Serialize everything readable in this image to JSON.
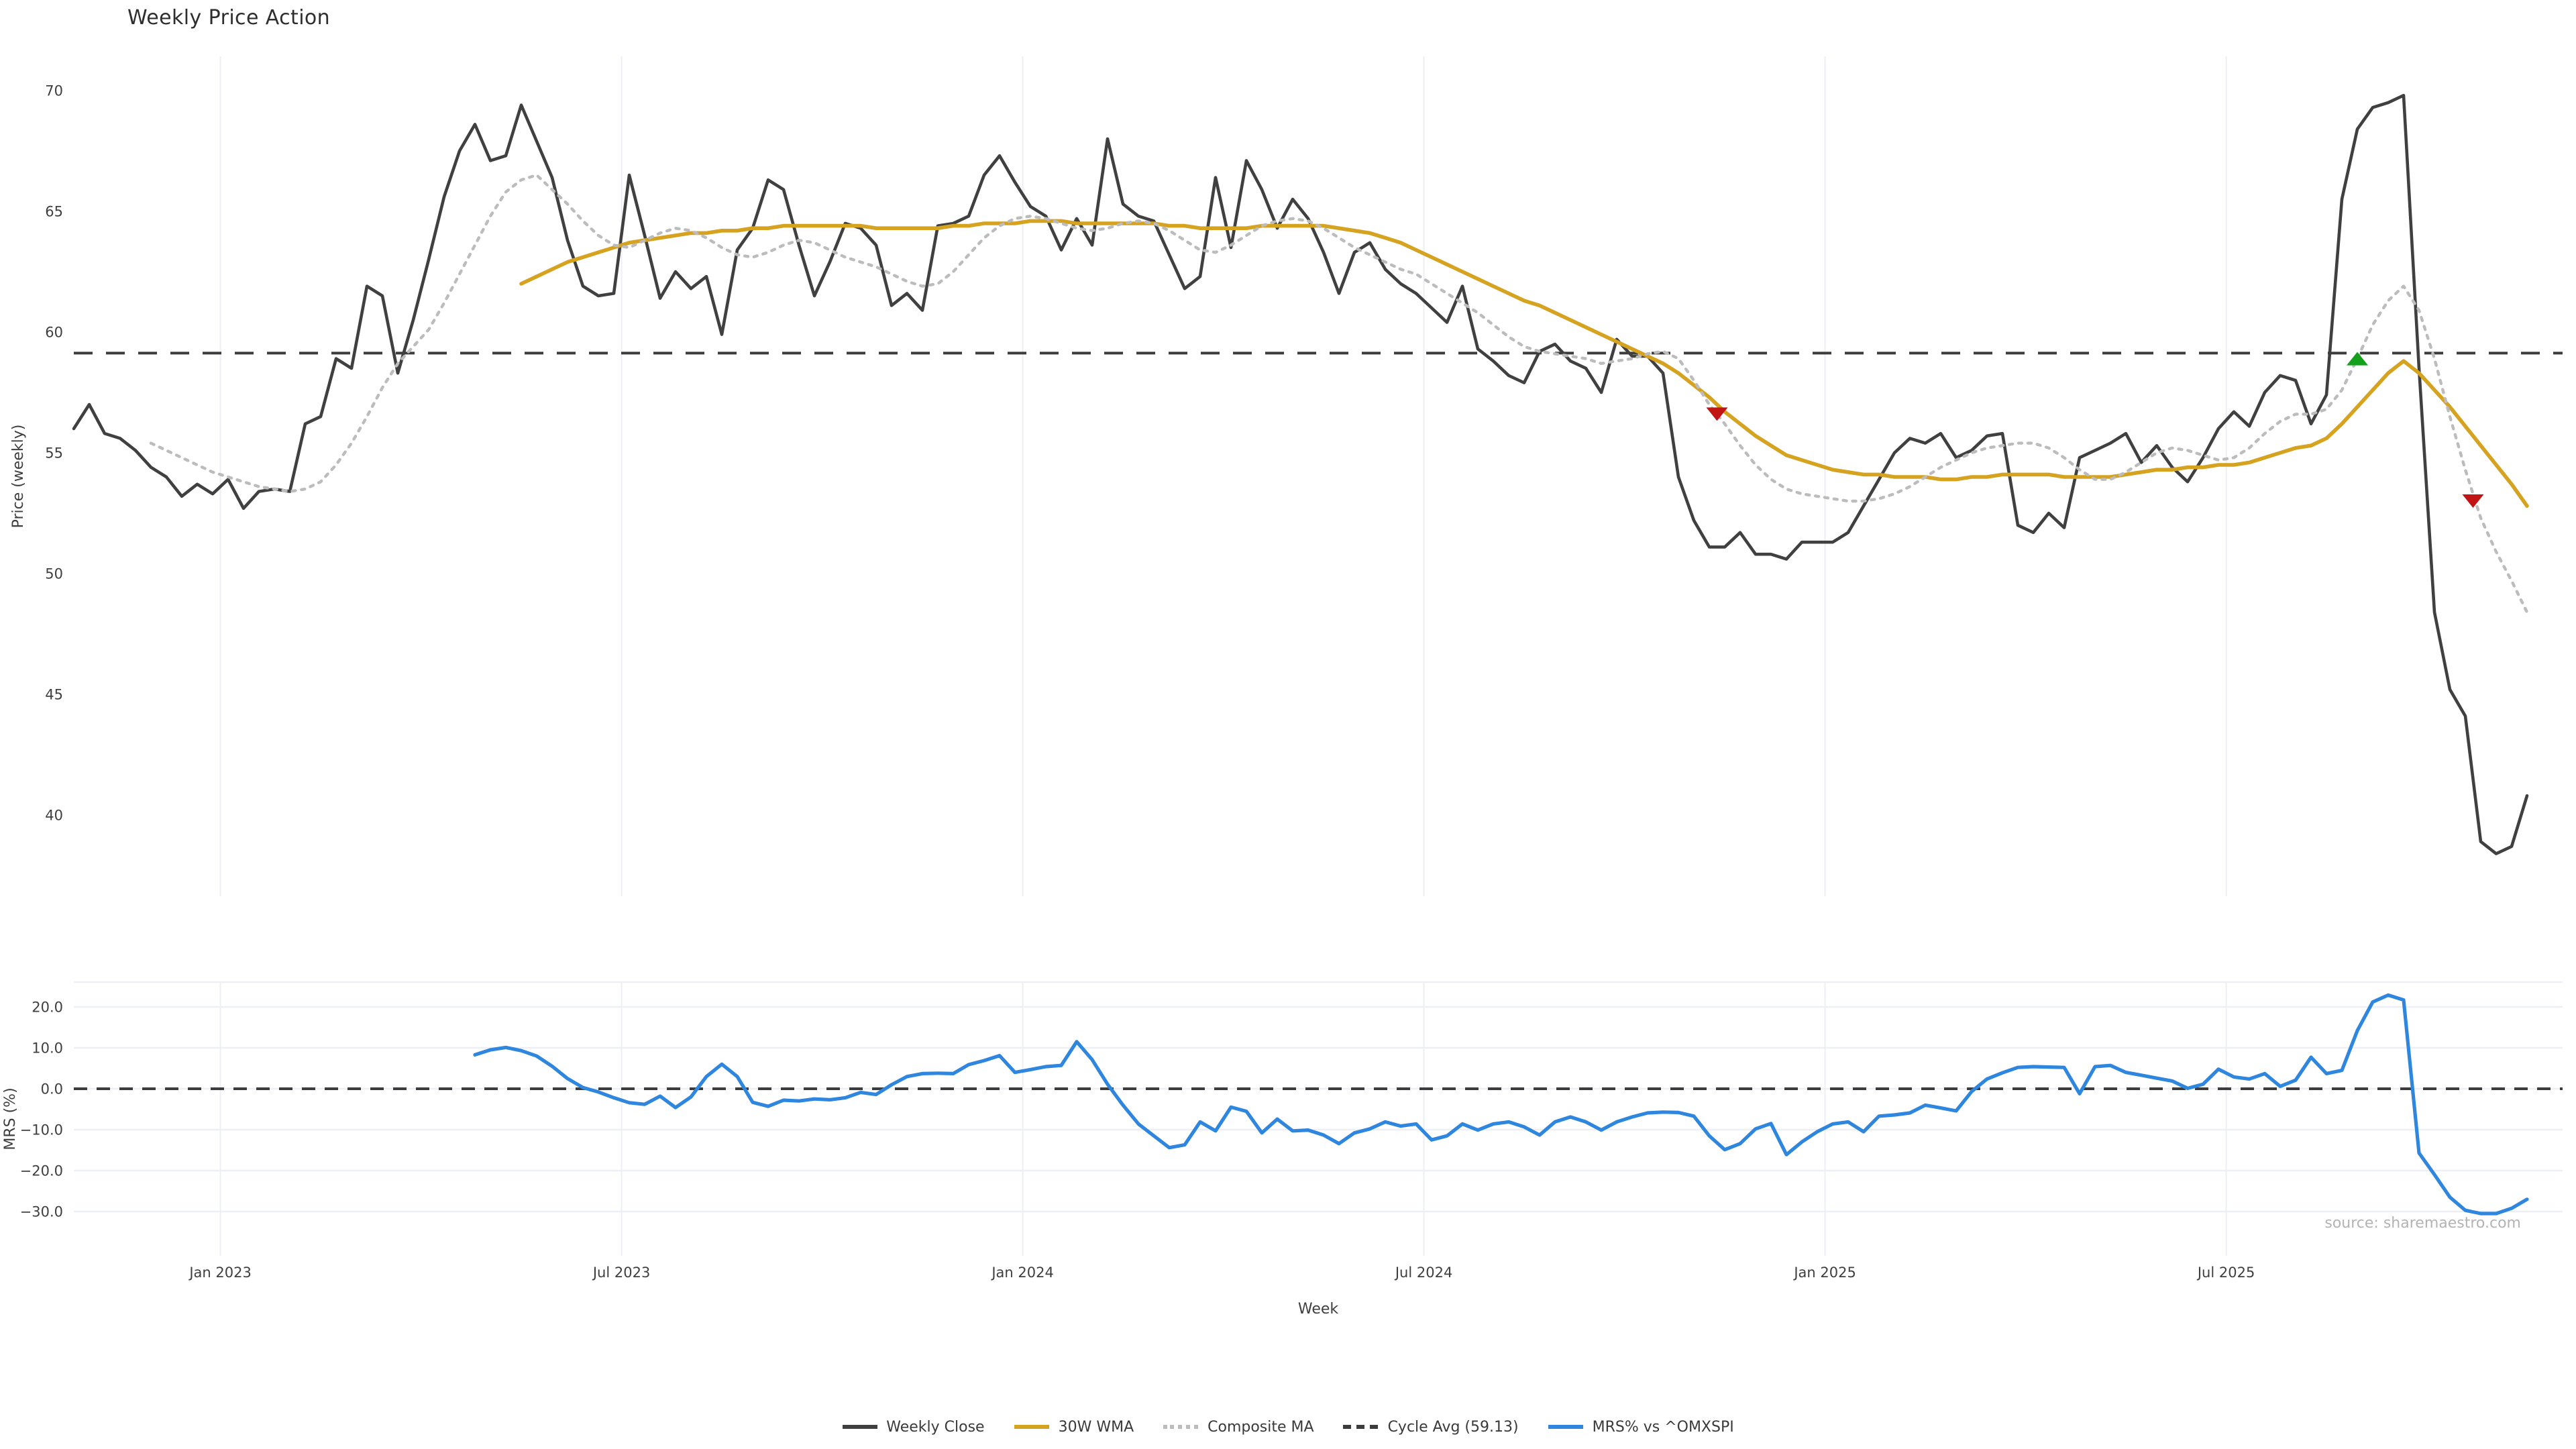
{
  "page": {
    "title": "Weekly Price Action",
    "source_note": "source: sharemaestro.com"
  },
  "chart_data": {
    "type": "line",
    "title": "Weekly Price Action",
    "layout": {
      "grid": "vertical-month-gridlines",
      "legend_position": "bottom-center",
      "panels": [
        "price",
        "mrs"
      ]
    },
    "x_axis": {
      "label": "Week",
      "tick_labels": [
        "Jan 2023",
        "Jul 2023",
        "Jan 2024",
        "Jul 2024",
        "Jan 2025",
        "Jul 2025"
      ],
      "tick_weeks": [
        9.5,
        35.5,
        61.5,
        87.5,
        113.5,
        139.5
      ],
      "weeks_total": 160
    },
    "price_panel": {
      "ylabel": "Price (weekly)",
      "ticks": [
        70,
        65,
        60,
        55,
        50,
        45,
        40
      ],
      "ylim": [
        36.5,
        71.4
      ],
      "cycle_avg": 59.13
    },
    "mrs_panel": {
      "ylabel": "MRS (%)",
      "ticks": [
        20.0,
        10.0,
        0.0,
        -10.0,
        -20.0,
        -30.0
      ],
      "ylim": [
        -33,
        26
      ],
      "zero_line": 0.0
    },
    "series": [
      {
        "name": "Weekly Close",
        "panel": "price",
        "color": "#404040",
        "style": "solid",
        "width": 2.3,
        "values": [
          56.0,
          57.0,
          55.8,
          55.6,
          55.1,
          54.4,
          54.0,
          53.2,
          53.7,
          53.3,
          53.9,
          52.7,
          53.4,
          53.5,
          53.4,
          56.2,
          56.5,
          58.9,
          58.5,
          61.9,
          61.5,
          58.3,
          60.5,
          63.0,
          65.6,
          67.5,
          68.6,
          67.1,
          67.3,
          69.4,
          67.9,
          66.4,
          63.8,
          61.9,
          61.5,
          61.6,
          66.5,
          64.0,
          61.4,
          62.5,
          61.8,
          62.3,
          59.9,
          63.4,
          64.3,
          66.3,
          65.9,
          63.6,
          61.5,
          62.9,
          64.5,
          64.3,
          63.6,
          61.1,
          61.6,
          60.9,
          64.4,
          64.5,
          64.8,
          66.5,
          67.3,
          66.2,
          65.2,
          64.8,
          63.4,
          64.7,
          63.6,
          68.0,
          65.3,
          64.8,
          64.6,
          63.2,
          61.8,
          62.3,
          66.4,
          63.5,
          67.1,
          65.9,
          64.3,
          65.5,
          64.7,
          63.3,
          61.6,
          63.3,
          63.7,
          62.6,
          62.0,
          61.6,
          61.0,
          60.4,
          61.9,
          59.3,
          58.8,
          58.2,
          57.9,
          59.2,
          59.5,
          58.8,
          58.5,
          57.5,
          59.7,
          59.0,
          59.0,
          58.3,
          54.0,
          52.2,
          51.1,
          51.1,
          51.7,
          50.8,
          50.8,
          50.6,
          51.3,
          51.3,
          51.3,
          51.7,
          52.8,
          53.9,
          55.0,
          55.6,
          55.4,
          55.8,
          54.8,
          55.1,
          55.7,
          55.8,
          52.0,
          51.7,
          52.5,
          51.9,
          54.8,
          55.1,
          55.4,
          55.8,
          54.6,
          55.3,
          54.4,
          53.8,
          54.8,
          56.0,
          56.7,
          56.1,
          57.5,
          58.2,
          58.0,
          56.2,
          57.4,
          65.5,
          68.4,
          69.3,
          69.5,
          69.8,
          58.5,
          48.4,
          45.2,
          44.1,
          38.9,
          38.4,
          38.7,
          40.8
        ]
      },
      {
        "name": "30W WMA",
        "panel": "price",
        "color": "#d6a320",
        "style": "solid",
        "width": 2.8,
        "values": [
          null,
          null,
          null,
          null,
          null,
          null,
          null,
          null,
          null,
          null,
          null,
          null,
          null,
          null,
          null,
          null,
          null,
          null,
          null,
          null,
          null,
          null,
          null,
          null,
          null,
          null,
          null,
          null,
          null,
          62.0,
          62.3,
          62.6,
          62.9,
          63.1,
          63.3,
          63.5,
          63.7,
          63.8,
          63.9,
          64.0,
          64.1,
          64.1,
          64.2,
          64.2,
          64.3,
          64.3,
          64.4,
          64.4,
          64.4,
          64.4,
          64.4,
          64.4,
          64.3,
          64.3,
          64.3,
          64.3,
          64.3,
          64.4,
          64.4,
          64.5,
          64.5,
          64.5,
          64.6,
          64.6,
          64.6,
          64.5,
          64.5,
          64.5,
          64.5,
          64.5,
          64.5,
          64.4,
          64.4,
          64.3,
          64.3,
          64.3,
          64.3,
          64.4,
          64.4,
          64.4,
          64.4,
          64.4,
          64.3,
          64.2,
          64.1,
          63.9,
          63.7,
          63.4,
          63.1,
          62.8,
          62.5,
          62.2,
          61.9,
          61.6,
          61.3,
          61.1,
          60.8,
          60.5,
          60.2,
          59.9,
          59.6,
          59.3,
          59.0,
          58.7,
          58.3,
          57.8,
          57.3,
          56.7,
          56.2,
          55.7,
          55.3,
          54.9,
          54.7,
          54.5,
          54.3,
          54.2,
          54.1,
          54.1,
          54.0,
          54.0,
          54.0,
          53.9,
          53.9,
          54.0,
          54.0,
          54.1,
          54.1,
          54.1,
          54.1,
          54.0,
          54.0,
          54.0,
          54.0,
          54.1,
          54.2,
          54.3,
          54.3,
          54.4,
          54.4,
          54.5,
          54.5,
          54.6,
          54.8,
          55.0,
          55.2,
          55.3,
          55.6,
          56.2,
          56.9,
          57.6,
          58.3,
          58.8,
          58.3,
          57.6,
          56.9,
          56.1,
          55.3,
          54.5,
          53.7,
          52.8
        ]
      },
      {
        "name": "Composite MA",
        "panel": "price",
        "color": "#bcbcbc",
        "style": "dotted",
        "width": 2.2,
        "values": [
          null,
          null,
          null,
          null,
          null,
          55.4,
          55.1,
          54.8,
          54.5,
          54.2,
          54.0,
          53.8,
          53.6,
          53.5,
          53.4,
          53.5,
          53.8,
          54.5,
          55.4,
          56.5,
          57.7,
          58.7,
          59.4,
          60.1,
          61.2,
          62.4,
          63.6,
          64.8,
          65.8,
          66.3,
          66.5,
          65.9,
          65.3,
          64.6,
          64.0,
          63.6,
          63.5,
          63.8,
          64.1,
          64.3,
          64.2,
          63.9,
          63.5,
          63.2,
          63.1,
          63.3,
          63.6,
          63.8,
          63.7,
          63.4,
          63.1,
          62.9,
          62.7,
          62.4,
          62.1,
          61.9,
          62.0,
          62.5,
          63.2,
          63.9,
          64.4,
          64.7,
          64.8,
          64.7,
          64.5,
          64.3,
          64.2,
          64.3,
          64.5,
          64.6,
          64.5,
          64.2,
          63.8,
          63.4,
          63.3,
          63.6,
          64.0,
          64.4,
          64.6,
          64.7,
          64.6,
          64.3,
          63.9,
          63.5,
          63.2,
          62.9,
          62.6,
          62.4,
          62.0,
          61.6,
          61.2,
          60.8,
          60.3,
          59.8,
          59.4,
          59.2,
          59.1,
          59.0,
          58.9,
          58.7,
          58.8,
          58.9,
          59.1,
          59.2,
          58.9,
          58.0,
          57.0,
          56.2,
          55.3,
          54.5,
          53.9,
          53.5,
          53.3,
          53.2,
          53.1,
          53.0,
          53.0,
          53.1,
          53.3,
          53.6,
          54.0,
          54.4,
          54.7,
          55.0,
          55.2,
          55.3,
          55.4,
          55.4,
          55.2,
          54.8,
          54.3,
          53.9,
          53.9,
          54.2,
          54.6,
          55.0,
          55.2,
          55.1,
          54.9,
          54.7,
          54.8,
          55.2,
          55.8,
          56.3,
          56.6,
          56.6,
          56.8,
          57.6,
          58.9,
          60.3,
          61.3,
          61.9,
          60.9,
          58.9,
          56.5,
          54.3,
          52.3,
          50.9,
          49.7,
          48.4
        ]
      },
      {
        "name": "Cycle Avg (59.13)",
        "panel": "price",
        "color": "#3c3c3c",
        "style": "dashed",
        "width": 2.0,
        "constant": 59.13
      },
      {
        "name": "MRS% vs ^OMXSPI",
        "panel": "mrs",
        "color": "#2e86de",
        "style": "solid",
        "width": 2.6,
        "values": [
          null,
          null,
          null,
          null,
          null,
          null,
          null,
          null,
          null,
          null,
          null,
          null,
          null,
          null,
          null,
          null,
          null,
          null,
          null,
          null,
          null,
          null,
          null,
          null,
          null,
          null,
          8.3,
          9.5,
          10.1,
          9.3,
          8.0,
          5.5,
          2.5,
          0.3,
          -0.8,
          -2.2,
          -3.4,
          -3.8,
          -1.8,
          -4.6,
          -2.0,
          3.0,
          6.0,
          3.0,
          -3.3,
          -4.3,
          -2.8,
          -3.0,
          -2.5,
          -2.7,
          -2.2,
          -0.9,
          -1.4,
          1.0,
          3.0,
          3.7,
          3.8,
          3.7,
          5.9,
          6.9,
          8.1,
          4.0,
          4.7,
          5.4,
          5.7,
          11.5,
          7.1,
          1.1,
          -4.0,
          -8.6,
          -11.5,
          -14.4,
          -13.7,
          -8.1,
          -10.3,
          -4.5,
          -5.5,
          -10.8,
          -7.4,
          -10.3,
          -10.1,
          -11.3,
          -13.4,
          -10.8,
          -9.8,
          -8.1,
          -9.1,
          -8.6,
          -12.5,
          -11.5,
          -8.6,
          -10.1,
          -8.6,
          -8.1,
          -9.3,
          -11.3,
          -8.1,
          -6.9,
          -8.1,
          -10.1,
          -8.1,
          -6.9,
          -5.9,
          -5.7,
          -5.8,
          -6.7,
          -11.5,
          -14.9,
          -13.4,
          -9.8,
          -8.5,
          -16.1,
          -13.0,
          -10.5,
          -8.6,
          -8.1,
          -10.5,
          -6.7,
          -6.4,
          -5.9,
          -4.0,
          -4.7,
          -5.4,
          -0.7,
          2.4,
          3.9,
          5.2,
          5.4,
          5.3,
          5.2,
          -1.2,
          5.4,
          5.7,
          4.0,
          3.3,
          2.6,
          1.9,
          0.1,
          1.1,
          4.8,
          2.9,
          2.4,
          3.7,
          0.6,
          2.1,
          7.7,
          3.7,
          4.5,
          14.2,
          21.2,
          22.9,
          21.7,
          -15.7,
          -21.0,
          -26.5,
          -29.7,
          -30.5,
          -30.5,
          -29.2,
          -27.0
        ]
      }
    ],
    "markers": [
      {
        "name": "sell-signal-1",
        "week": 106.5,
        "price": 56.6,
        "direction": "down",
        "color": "#c21414"
      },
      {
        "name": "buy-signal-1",
        "week": 148.0,
        "price": 58.9,
        "direction": "up",
        "color": "#13a01b"
      },
      {
        "name": "sell-signal-2",
        "week": 155.5,
        "price": 53.0,
        "direction": "down",
        "color": "#c21414"
      }
    ],
    "legend": [
      {
        "label": "Weekly Close",
        "color": "#404040",
        "line_style": "solid"
      },
      {
        "label": "30W WMA",
        "color": "#d6a320",
        "line_style": "solid"
      },
      {
        "label": "Composite MA",
        "color": "#bcbcbc",
        "line_style": "dotted"
      },
      {
        "label": "Cycle Avg (59.13)",
        "color": "#3c3c3c",
        "line_style": "dashed"
      },
      {
        "label": "MRS% vs ^OMXSPI",
        "color": "#2e86de",
        "line_style": "solid"
      }
    ],
    "colors": {
      "background": "#ffffff",
      "gridline": "#edeff4",
      "tick_text": "#3f3f3f",
      "source_text": "#b3b3b3"
    }
  }
}
